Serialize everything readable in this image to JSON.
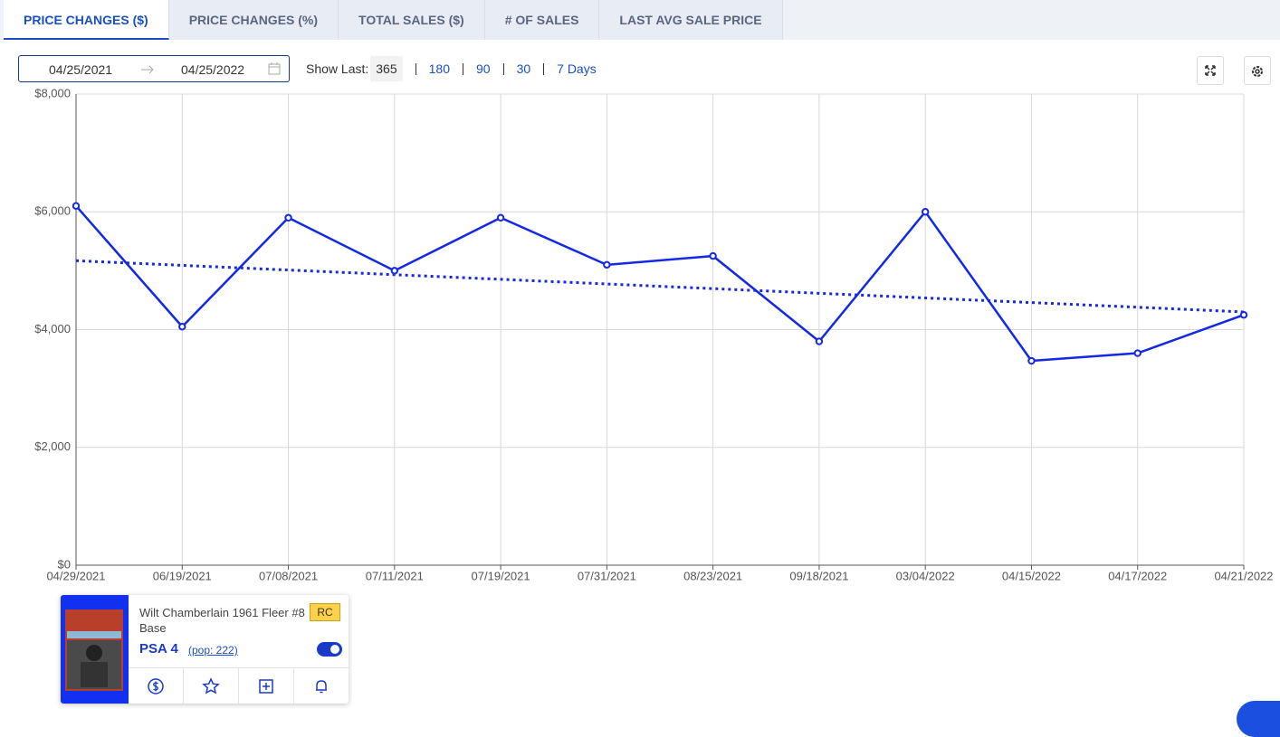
{
  "tabs": [
    "PRICE CHANGES ($)",
    "PRICE CHANGES (%)",
    "TOTAL SALES ($)",
    "# OF SALES",
    "LAST AVG SALE PRICE"
  ],
  "date_range": {
    "start": "04/25/2021",
    "end": "04/25/2022"
  },
  "show_last": {
    "label": "Show Last:",
    "current": "365",
    "options": [
      "180",
      "90",
      "30",
      "7 Days"
    ]
  },
  "card": {
    "name": "Wilt Chamberlain 1961 Fleer #8 Base",
    "badge": "RC",
    "grade": "PSA 4",
    "pop": "(pop: 222)"
  },
  "chart_data": {
    "type": "line",
    "categories": [
      "04/29/2021",
      "06/19/2021",
      "07/08/2021",
      "07/11/2021",
      "07/19/2021",
      "07/31/2021",
      "08/23/2021",
      "09/18/2021",
      "03/04/2022",
      "04/15/2022",
      "04/17/2022",
      "04/21/2022"
    ],
    "series": [
      {
        "color": "#1428e6",
        "values": [
          6100,
          4050,
          5900,
          5000,
          5900,
          5100,
          5250,
          3800,
          6000,
          3470,
          3600,
          4250
        ]
      },
      {
        "color": "#1428e6",
        "dashed": true,
        "values": [
          5170,
          5091,
          5012,
          4933,
          4854,
          4775,
          4696,
          4617,
          4538,
          4459,
          4380,
          4300
        ]
      }
    ],
    "ylim": [
      0,
      8000
    ],
    "yticks": [
      {
        "value": 0,
        "label": "$0"
      },
      {
        "value": 2000,
        "label": "$2,000"
      },
      {
        "value": 4000,
        "label": "$4,000"
      },
      {
        "value": 6000,
        "label": "$6,000"
      },
      {
        "value": 8000,
        "label": "$8,000"
      }
    ],
    "grid": true
  }
}
